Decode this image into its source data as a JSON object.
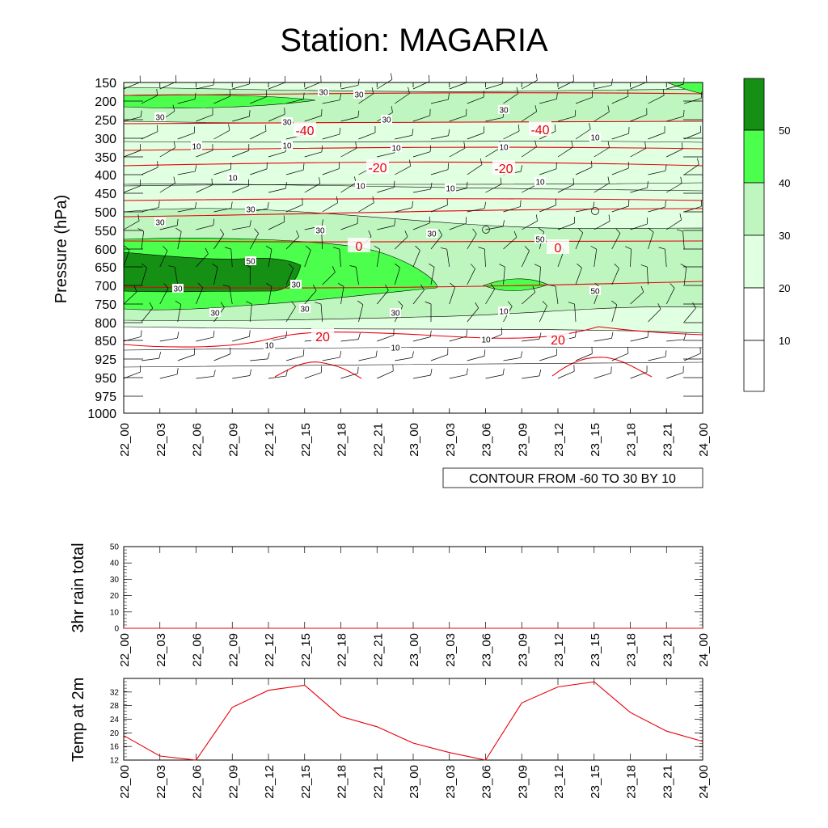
{
  "title": "Station: MAGARIA",
  "colors": {
    "line": "#e8000b",
    "axis": "#000000",
    "c1": "#ffffff",
    "c2": "#e1ffe1",
    "c3": "#bff6bf",
    "c4": "#4cff4c",
    "c5": "#159015"
  },
  "chart_data": [
    {
      "type": "heatmap",
      "name": "time-height cross section",
      "ylabel": "Pressure (hPa)",
      "xlabel": "",
      "pressure_levels": [
        150,
        200,
        250,
        300,
        350,
        400,
        450,
        500,
        550,
        600,
        650,
        700,
        750,
        800,
        850,
        925,
        950,
        975,
        1000
      ],
      "pressure_tick_labels": [
        "150",
        "200",
        "250",
        "300",
        "350",
        "400",
        "450",
        "500",
        "550",
        "600",
        "650",
        "700",
        "750",
        "800",
        "850",
        "925",
        "950",
        "975",
        "1000"
      ],
      "time_labels": [
        "22_00",
        "22_03",
        "22_06",
        "22_09",
        "22_12",
        "22_15",
        "22_18",
        "22_21",
        "23_00",
        "23_03",
        "23_06",
        "23_09",
        "23_12",
        "23_15",
        "23_18",
        "23_21",
        "24_00"
      ],
      "contour_info": "CONTOUR FROM -60 TO 30 BY 10",
      "fill_colorbar": {
        "levels": [
          10,
          20,
          30,
          40,
          50
        ],
        "labels": [
          "10",
          "20",
          "30",
          "40",
          "50"
        ]
      },
      "fill_contour_labels": [
        "30",
        "30",
        "30",
        "30",
        "30",
        "30",
        "10",
        "10",
        "10",
        "10",
        "10",
        "10",
        "10",
        "10",
        "10",
        "30",
        "30",
        "30",
        "30",
        "50",
        "50",
        "50",
        "30",
        "30",
        "30",
        "30",
        "30",
        "10",
        "10",
        "10",
        "10"
      ],
      "temperature_contour_labels": [
        "-40",
        "-40",
        "-20",
        "-20",
        "0",
        "0",
        "20",
        "20"
      ]
    },
    {
      "type": "line",
      "name": "3hr rain",
      "ylabel": "3hr rain total",
      "x": [
        "22_00",
        "22_03",
        "22_06",
        "22_09",
        "22_12",
        "22_15",
        "22_18",
        "22_21",
        "23_00",
        "23_03",
        "23_06",
        "23_09",
        "23_12",
        "23_15",
        "23_18",
        "23_21",
        "24_00"
      ],
      "values": [
        0,
        0,
        0,
        0,
        0,
        0,
        0,
        0,
        0,
        0,
        0,
        0,
        0,
        0,
        0,
        0,
        0
      ],
      "ylim": [
        0,
        50
      ],
      "ytick_labels": [
        "0",
        "10",
        "20",
        "30",
        "40",
        "50"
      ]
    },
    {
      "type": "line",
      "name": "temperature at 2m",
      "ylabel": "Temp at 2m",
      "x": [
        "22_00",
        "22_03",
        "22_06",
        "22_09",
        "22_12",
        "22_15",
        "22_18",
        "22_21",
        "23_00",
        "23_03",
        "23_06",
        "23_09",
        "23_12",
        "23_15",
        "23_18",
        "23_21",
        "24_00"
      ],
      "values": [
        19.2,
        13.2,
        12.0,
        27.5,
        32.5,
        34.0,
        24.8,
        21.8,
        17.0,
        14.2,
        12.0,
        28.8,
        33.5,
        35.0,
        26.0,
        20.5,
        17.5
      ],
      "ylim": [
        12,
        36
      ],
      "ytick_labels": [
        "12",
        "16",
        "20",
        "24",
        "28",
        "32"
      ]
    }
  ]
}
